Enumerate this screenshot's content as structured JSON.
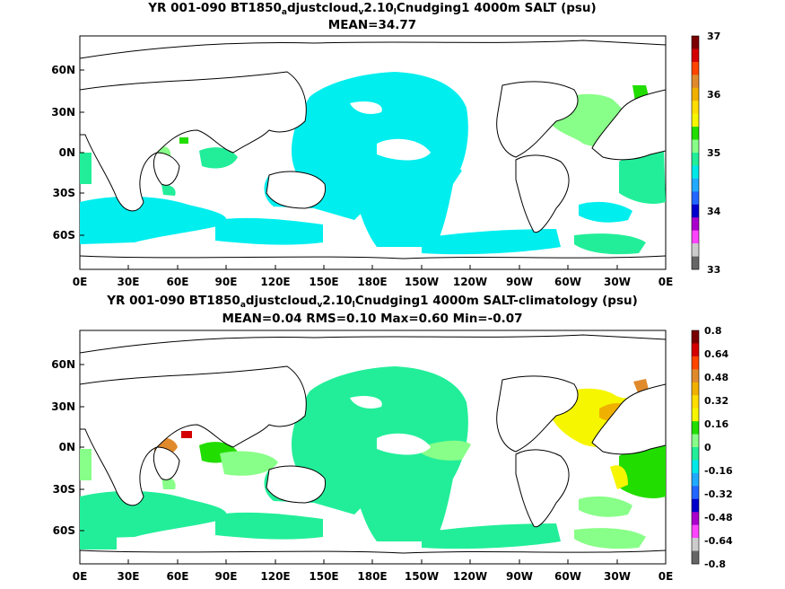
{
  "panels": [
    {
      "title_parts": [
        "YR 001-090 BT1850",
        "a",
        "djustcloud",
        "v",
        "2.10",
        "l",
        "Cnudging1 4000m SALT (psu)"
      ],
      "subtitle": "MEAN=34.77"
    },
    {
      "title_parts": [
        "YR 001-090 BT1850",
        "a",
        "djustcloud",
        "v",
        "2.10",
        "l",
        "Cnudging1 4000m SALT-climatology (psu)"
      ],
      "subtitle": "MEAN=0.04   RMS=0.10   Max=0.60   Min=-0.07"
    }
  ],
  "chart_data": [
    {
      "type": "heatmap",
      "x_ticks": [
        "0E",
        "30E",
        "60E",
        "90E",
        "120E",
        "150E",
        "180E",
        "150W",
        "120W",
        "90W",
        "60W",
        "30W",
        "0E"
      ],
      "y_ticks": [
        "60N",
        "30N",
        "0N",
        "30S",
        "60S"
      ],
      "colorbar": {
        "labels": [
          "37",
          "36",
          "35",
          "34",
          "33"
        ],
        "colors": [
          "#7a0000",
          "#d40000",
          "#ff4400",
          "#e08a2c",
          "#f0b000",
          "#ffdd00",
          "#f6f600",
          "#22dd00",
          "#88ff88",
          "#22ee99",
          "#00e8e8",
          "#22aaff",
          "#2266ff",
          "#0000cc",
          "#aa00cc",
          "#ff44ff",
          "#cccccc",
          "#666666"
        ]
      },
      "regions": [
        {
          "color": "#00eeee",
          "value_range": "34.8-35.0",
          "area": "Pacific"
        },
        {
          "color": "#00eeee",
          "value_range": "34.8-35.0",
          "area": "Southern Ocean"
        },
        {
          "color": "#88ff88",
          "value_range": "35.0-35.2",
          "area": "North Atlantic"
        },
        {
          "color": "#22ee99",
          "value_range": "34.9-35.0",
          "area": "South Atlantic"
        }
      ]
    },
    {
      "type": "heatmap",
      "x_ticks": [
        "0E",
        "30E",
        "60E",
        "90E",
        "120E",
        "150E",
        "180E",
        "150W",
        "120W",
        "90W",
        "60W",
        "30W",
        "0E"
      ],
      "y_ticks": [
        "60N",
        "30N",
        "0N",
        "30S",
        "60S"
      ],
      "colorbar": {
        "labels": [
          "0.8",
          "0.64",
          "0.48",
          "0.32",
          "0.16",
          "0",
          "-0.16",
          "-0.32",
          "-0.48",
          "-0.64",
          "-0.8"
        ],
        "colors": [
          "#7a0000",
          "#d40000",
          "#ff4400",
          "#e08a2c",
          "#f0b000",
          "#ffdd00",
          "#f6f600",
          "#22dd00",
          "#88ff88",
          "#22ee99",
          "#00e8e8",
          "#22aaff",
          "#2266ff",
          "#0000cc",
          "#aa00cc",
          "#ff44ff",
          "#cccccc",
          "#666666"
        ]
      },
      "regions": [
        {
          "color": "#22ee99",
          "value_range": "0-0.08",
          "area": "Pacific"
        },
        {
          "color": "#f6f600",
          "value_range": "0.16-0.24",
          "area": "North Atlantic"
        },
        {
          "color": "#f0b000",
          "value_range": "0.24-0.32",
          "area": "Northwest Atlantic"
        },
        {
          "color": "#e08a2c",
          "value_range": "0.32-0.40",
          "area": "Arabian Sea"
        },
        {
          "color": "#d40000",
          "value_range": "0.48-0.64",
          "area": "Arabian Sea"
        },
        {
          "color": "#88ff88",
          "value_range": "0.08-0.16",
          "area": "Southern Ocean"
        }
      ]
    }
  ]
}
